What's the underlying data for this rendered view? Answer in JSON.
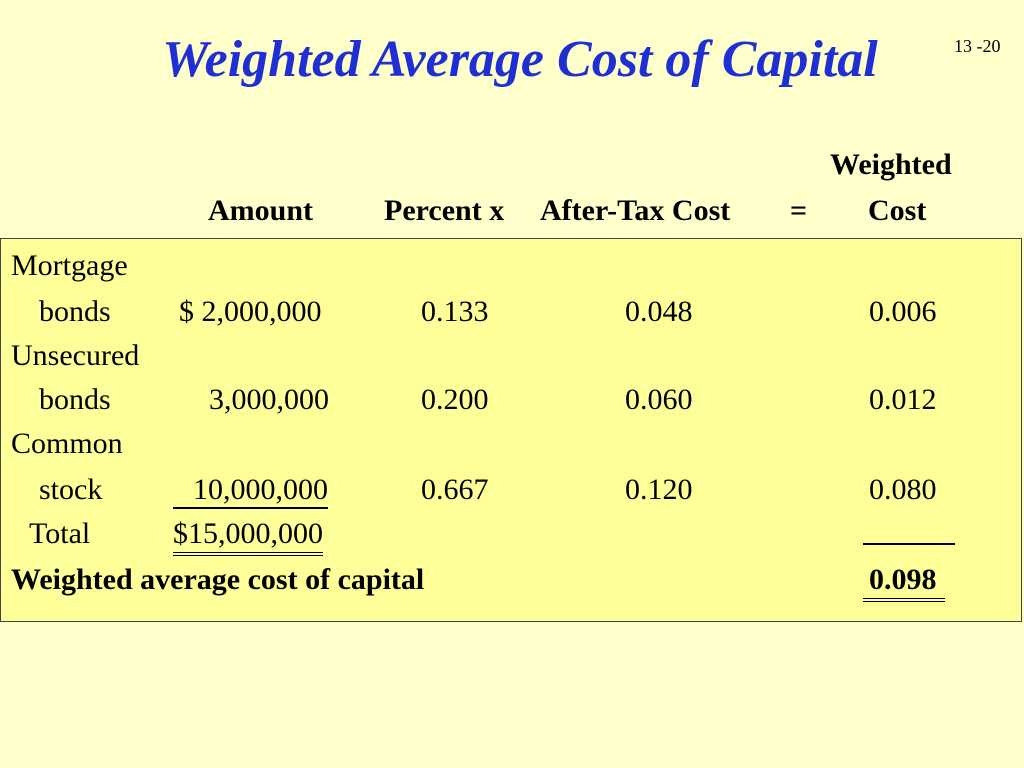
{
  "title": "Weighted Average Cost of Capital",
  "page_number": "13 -20",
  "headers": {
    "amount": "Amount",
    "percent": "Percent x",
    "after_tax_cost": "After-Tax Cost",
    "equals": "=",
    "weighted_line1": "Weighted",
    "weighted_line2": "Cost"
  },
  "rows": [
    {
      "label_line1": "Mortgage",
      "label_line2": "bonds",
      "amount": "$ 2,000,000",
      "percent": "0.133",
      "after_tax_cost": "0.048",
      "weighted_cost": "0.006"
    },
    {
      "label_line1": "Unsecured",
      "label_line2": "bonds",
      "amount": "3,000,000",
      "percent": "0.200",
      "after_tax_cost": "0.060",
      "weighted_cost": "0.012"
    },
    {
      "label_line1": "Common",
      "label_line2": "stock",
      "amount": "10,000,000",
      "percent": "0.667",
      "after_tax_cost": "0.120",
      "weighted_cost": "0.080"
    }
  ],
  "total": {
    "label": "Total",
    "amount": "$15,000,000"
  },
  "wacc": {
    "label": "Weighted average cost of capital",
    "value": "0.098"
  }
}
